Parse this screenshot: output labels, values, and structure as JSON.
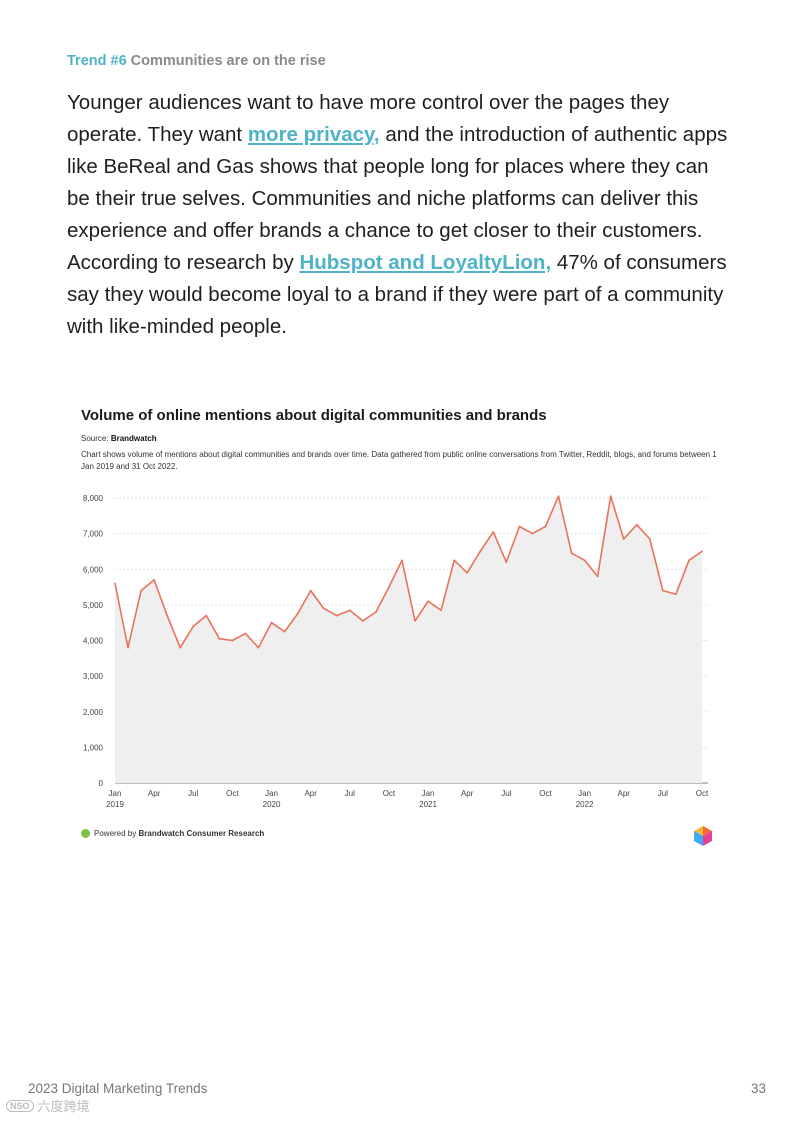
{
  "trend": {
    "number": "Trend #6",
    "title": "Communities are on the rise"
  },
  "paragraph": {
    "part1": "Younger audiences want to have more control over the pages they operate. They want ",
    "link1": "more privacy,",
    "part2": " and the introduction of authentic apps like BeReal and Gas shows that people long for places where they can be their true selves. Communities and niche platforms can deliver this experience and offer brands a chance to get closer to their customers. According to research by ",
    "link2": "Hubspot and LoyaltyLion,",
    "part3": " 47% of consumers say they would become loyal to a brand if they were part of a community with like-minded people."
  },
  "chart": {
    "source_label": "Source:",
    "source_name": "Brandwatch",
    "description": "Chart shows volume of mentions about digital communities and brands over time. Data gathered from public online conversations from Twitter, Reddit, blogs, and forums between 1 Jan 2019 and 31 Oct 2022.",
    "powered_prefix": "Powered by",
    "powered_name": "Brandwatch Consumer Research",
    "line_color": "#e8735a",
    "area_color": "#efefef"
  },
  "chart_data": {
    "type": "area",
    "title": "Volume of online mentions about digital communities and brands",
    "xlabel": "",
    "ylabel": "",
    "ylim": [
      0,
      8000
    ],
    "yticks": [
      0,
      1000,
      2000,
      3000,
      4000,
      5000,
      6000,
      7000,
      8000
    ],
    "ytick_labels": [
      "0",
      "1,000",
      "2,000",
      "3,000",
      "4,000",
      "5,000",
      "6,000",
      "7,000",
      "8,000"
    ],
    "xtick_labels": [
      {
        "month": "Jan",
        "year": "2019",
        "index": 0
      },
      {
        "month": "Apr",
        "year": "",
        "index": 3
      },
      {
        "month": "Jul",
        "year": "",
        "index": 6
      },
      {
        "month": "Oct",
        "year": "",
        "index": 9
      },
      {
        "month": "Jan",
        "year": "2020",
        "index": 12
      },
      {
        "month": "Apr",
        "year": "",
        "index": 15
      },
      {
        "month": "Jul",
        "year": "",
        "index": 18
      },
      {
        "month": "Oct",
        "year": "",
        "index": 21
      },
      {
        "month": "Jan",
        "year": "2021",
        "index": 24
      },
      {
        "month": "Apr",
        "year": "",
        "index": 27
      },
      {
        "month": "Jul",
        "year": "",
        "index": 30
      },
      {
        "month": "Oct",
        "year": "",
        "index": 33
      },
      {
        "month": "Jan",
        "year": "2022",
        "index": 36
      },
      {
        "month": "Apr",
        "year": "",
        "index": 39
      },
      {
        "month": "Jul",
        "year": "",
        "index": 42
      },
      {
        "month": "Oct",
        "year": "",
        "index": 45
      }
    ],
    "series": [
      {
        "name": "Mentions",
        "values": [
          5600,
          3800,
          5400,
          5700,
          4700,
          3800,
          4400,
          4700,
          4050,
          4000,
          4200,
          3800,
          4500,
          4250,
          4750,
          5400,
          4900,
          4700,
          4850,
          4550,
          4800,
          5500,
          6250,
          4550,
          5100,
          4850,
          6250,
          5900,
          6500,
          7050,
          6200,
          7200,
          7000,
          7200,
          8050,
          6450,
          6250,
          5800,
          8050,
          6850,
          7250,
          6850,
          5400,
          5300,
          6250,
          6500
        ]
      }
    ]
  },
  "footer": {
    "title": "2023 Digital Marketing Trends",
    "page": "33",
    "watermark_logo": "NSO",
    "watermark_text": "六度跨境"
  }
}
